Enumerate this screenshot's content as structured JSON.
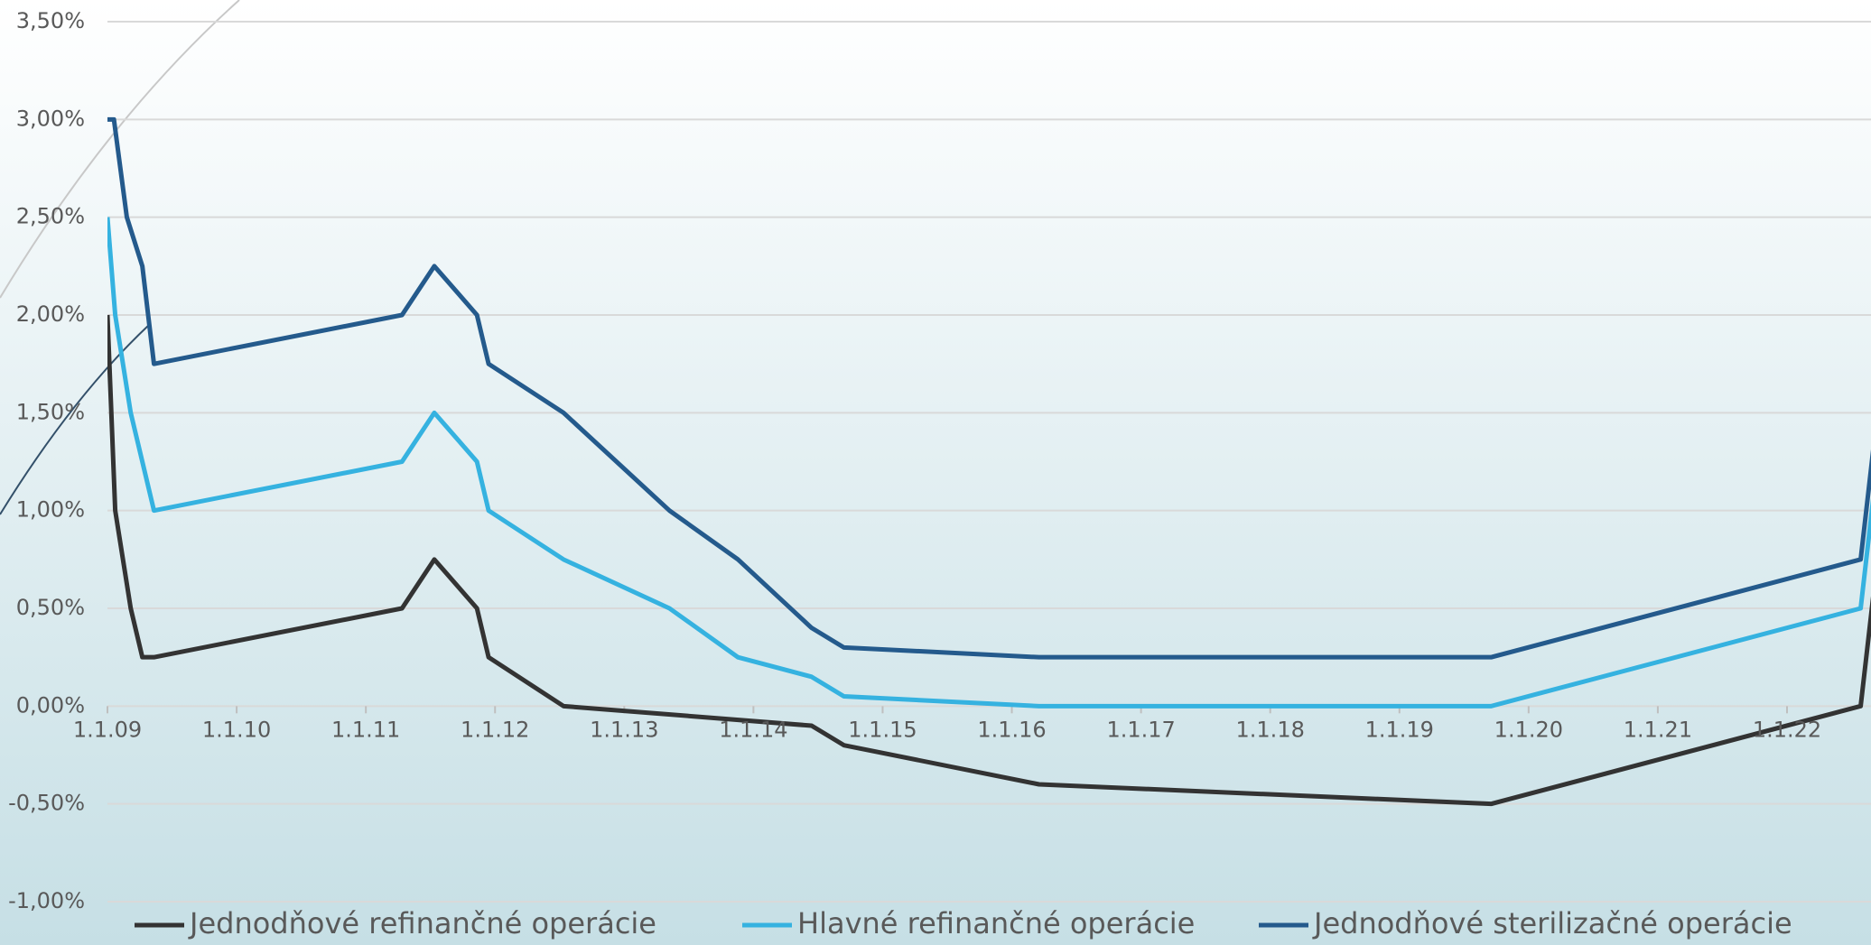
{
  "chart_data": {
    "type": "line",
    "xlim": [
      2009,
      2022.65
    ],
    "xticks": [
      {
        "value": 2009,
        "label": "1.1.09"
      },
      {
        "value": 2010,
        "label": "1.1.10"
      },
      {
        "value": 2011,
        "label": "1.1.11"
      },
      {
        "value": 2012,
        "label": "1.1.12"
      },
      {
        "value": 2013,
        "label": "1.1.13"
      },
      {
        "value": 2014,
        "label": "1.1.14"
      },
      {
        "value": 2015,
        "label": "1.1.15"
      },
      {
        "value": 2016,
        "label": "1.1.16"
      },
      {
        "value": 2017,
        "label": "1.1.17"
      },
      {
        "value": 2018,
        "label": "1.1.18"
      },
      {
        "value": 2019,
        "label": "1.1.19"
      },
      {
        "value": 2020,
        "label": "1.1.20"
      },
      {
        "value": 2021,
        "label": "1.1.21"
      },
      {
        "value": 2022,
        "label": "1.1.22"
      }
    ],
    "ylim": [
      -1,
      3.5
    ],
    "yticks": [
      {
        "value": -1,
        "label": "-1,00%"
      },
      {
        "value": -0.5,
        "label": "-0,50%"
      },
      {
        "value": 0,
        "label": "0,00%"
      },
      {
        "value": 0.5,
        "label": "0,50%"
      },
      {
        "value": 1,
        "label": "1,00%"
      },
      {
        "value": 1.5,
        "label": "1,50%"
      },
      {
        "value": 2,
        "label": "2,00%"
      },
      {
        "value": 2.5,
        "label": "2,50%"
      },
      {
        "value": 3,
        "label": "3,00%"
      },
      {
        "value": 3.5,
        "label": "3,50%"
      }
    ],
    "grid": true,
    "legend": "bottom",
    "series": [
      {
        "name": "Jednodňové refinančné operácie",
        "color": "#333333",
        "x": [
          2009.0,
          2009.06,
          2009.18,
          2009.27,
          2009.36,
          2011.28,
          2011.53,
          2011.86,
          2011.95,
          2012.53,
          2014.45,
          2014.7,
          2016.21,
          2019.71,
          2022.57,
          2022.7,
          2022.84
        ],
        "values": [
          2.0,
          1.0,
          0.5,
          0.25,
          0.25,
          0.5,
          0.75,
          0.5,
          0.25,
          0.0,
          -0.1,
          -0.2,
          -0.4,
          -0.5,
          0.0,
          0.75,
          1.5
        ]
      },
      {
        "name": "Hlavné refinančné operácie",
        "color": "#35b2e0",
        "x": [
          2009.0,
          2009.06,
          2009.18,
          2009.27,
          2009.36,
          2011.28,
          2011.53,
          2011.86,
          2011.95,
          2012.53,
          2013.35,
          2013.88,
          2014.45,
          2014.7,
          2016.21,
          2019.71,
          2022.57,
          2022.7,
          2022.84
        ],
        "values": [
          2.5,
          2.0,
          1.5,
          1.25,
          1.0,
          1.25,
          1.5,
          1.25,
          1.0,
          0.75,
          0.5,
          0.25,
          0.15,
          0.05,
          0.0,
          0.0,
          0.5,
          1.25,
          2.0
        ]
      },
      {
        "name": "Jednodňové sterilizačné operácie",
        "color": "#245a8c",
        "x": [
          2009.0,
          2009.05,
          2009.15,
          2009.27,
          2009.36,
          2011.28,
          2011.53,
          2011.86,
          2011.95,
          2012.53,
          2013.35,
          2013.88,
          2014.45,
          2014.7,
          2016.21,
          2019.71,
          2022.57,
          2022.7,
          2022.84
        ],
        "values": [
          3.0,
          3.0,
          2.5,
          2.25,
          1.75,
          2.0,
          2.25,
          2.0,
          1.75,
          1.5,
          1.0,
          0.75,
          0.4,
          0.3,
          0.25,
          0.25,
          0.75,
          1.5,
          2.25
        ]
      }
    ]
  }
}
